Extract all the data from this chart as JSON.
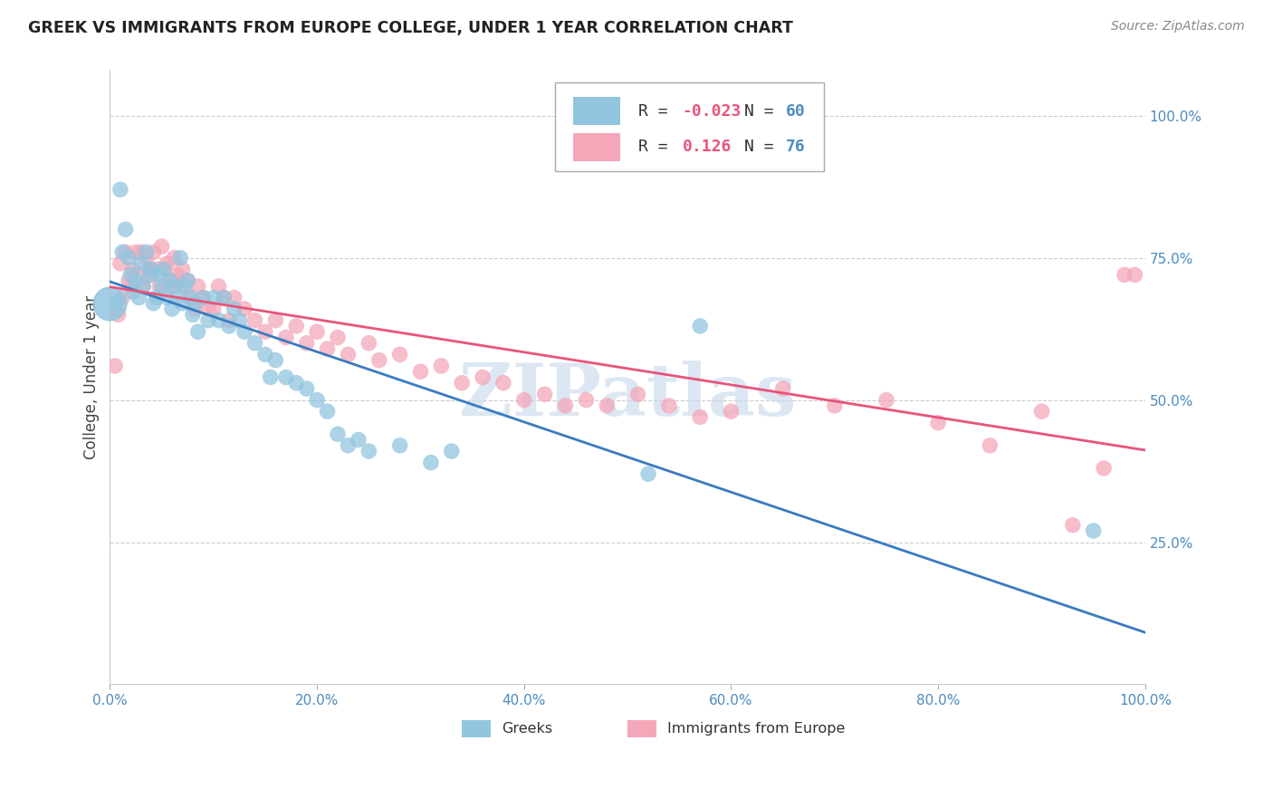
{
  "title": "GREEK VS IMMIGRANTS FROM EUROPE COLLEGE, UNDER 1 YEAR CORRELATION CHART",
  "source": "Source: ZipAtlas.com",
  "ylabel": "College, Under 1 year",
  "legend_r1_prefix": "R = ",
  "legend_r1_val": "-0.023",
  "legend_n1_prefix": "N = ",
  "legend_n1_val": "60",
  "legend_r2_prefix": "R =  ",
  "legend_r2_val": "0.126",
  "legend_n2_prefix": "N = ",
  "legend_n2_val": "76",
  "blue_color": "#92C5DE",
  "pink_color": "#F4A7B9",
  "blue_line_color": "#3A7BBF",
  "pink_line_color": "#E8547A",
  "title_color": "#222222",
  "axis_label_color": "#4C8CBF",
  "watermark_text": "ZIPatlas",
  "watermark_color": "#C5D8EC",
  "blue_scatter_x": [
    0.005,
    0.01,
    0.012,
    0.015,
    0.018,
    0.02,
    0.022,
    0.025,
    0.028,
    0.03,
    0.032,
    0.035,
    0.038,
    0.04,
    0.042,
    0.045,
    0.048,
    0.05,
    0.052,
    0.055,
    0.058,
    0.06,
    0.062,
    0.065,
    0.068,
    0.07,
    0.072,
    0.075,
    0.078,
    0.08,
    0.082,
    0.085,
    0.09,
    0.095,
    0.1,
    0.105,
    0.11,
    0.115,
    0.12,
    0.125,
    0.13,
    0.14,
    0.15,
    0.155,
    0.16,
    0.17,
    0.18,
    0.19,
    0.2,
    0.21,
    0.22,
    0.23,
    0.24,
    0.25,
    0.28,
    0.31,
    0.33,
    0.52,
    0.57,
    0.95
  ],
  "blue_scatter_y": [
    0.67,
    0.87,
    0.76,
    0.8,
    0.75,
    0.72,
    0.69,
    0.71,
    0.68,
    0.74,
    0.7,
    0.76,
    0.72,
    0.73,
    0.67,
    0.68,
    0.72,
    0.7,
    0.73,
    0.68,
    0.71,
    0.66,
    0.7,
    0.68,
    0.75,
    0.67,
    0.7,
    0.71,
    0.68,
    0.65,
    0.67,
    0.62,
    0.68,
    0.64,
    0.68,
    0.64,
    0.68,
    0.63,
    0.66,
    0.64,
    0.62,
    0.6,
    0.58,
    0.54,
    0.57,
    0.54,
    0.53,
    0.52,
    0.5,
    0.48,
    0.44,
    0.42,
    0.43,
    0.41,
    0.42,
    0.39,
    0.41,
    0.37,
    0.63,
    0.27
  ],
  "pink_scatter_x": [
    0.005,
    0.008,
    0.01,
    0.012,
    0.015,
    0.018,
    0.02,
    0.022,
    0.025,
    0.028,
    0.03,
    0.032,
    0.035,
    0.038,
    0.04,
    0.042,
    0.045,
    0.048,
    0.05,
    0.052,
    0.055,
    0.058,
    0.06,
    0.062,
    0.065,
    0.068,
    0.07,
    0.075,
    0.078,
    0.082,
    0.085,
    0.09,
    0.095,
    0.1,
    0.105,
    0.11,
    0.115,
    0.12,
    0.13,
    0.14,
    0.15,
    0.16,
    0.17,
    0.18,
    0.19,
    0.2,
    0.21,
    0.22,
    0.23,
    0.25,
    0.26,
    0.28,
    0.3,
    0.32,
    0.34,
    0.36,
    0.38,
    0.4,
    0.42,
    0.44,
    0.46,
    0.48,
    0.51,
    0.54,
    0.57,
    0.6,
    0.65,
    0.7,
    0.75,
    0.8,
    0.85,
    0.9,
    0.93,
    0.96,
    0.98,
    0.99
  ],
  "pink_scatter_y": [
    0.56,
    0.65,
    0.74,
    0.68,
    0.76,
    0.71,
    0.7,
    0.73,
    0.76,
    0.72,
    0.76,
    0.7,
    0.75,
    0.73,
    0.72,
    0.76,
    0.73,
    0.7,
    0.77,
    0.73,
    0.74,
    0.7,
    0.71,
    0.75,
    0.72,
    0.7,
    0.73,
    0.71,
    0.68,
    0.66,
    0.7,
    0.68,
    0.66,
    0.66,
    0.7,
    0.68,
    0.64,
    0.68,
    0.66,
    0.64,
    0.62,
    0.64,
    0.61,
    0.63,
    0.6,
    0.62,
    0.59,
    0.61,
    0.58,
    0.6,
    0.57,
    0.58,
    0.55,
    0.56,
    0.53,
    0.54,
    0.53,
    0.5,
    0.51,
    0.49,
    0.5,
    0.49,
    0.51,
    0.49,
    0.47,
    0.48,
    0.52,
    0.49,
    0.5,
    0.46,
    0.42,
    0.48,
    0.28,
    0.38,
    0.72,
    0.72
  ]
}
